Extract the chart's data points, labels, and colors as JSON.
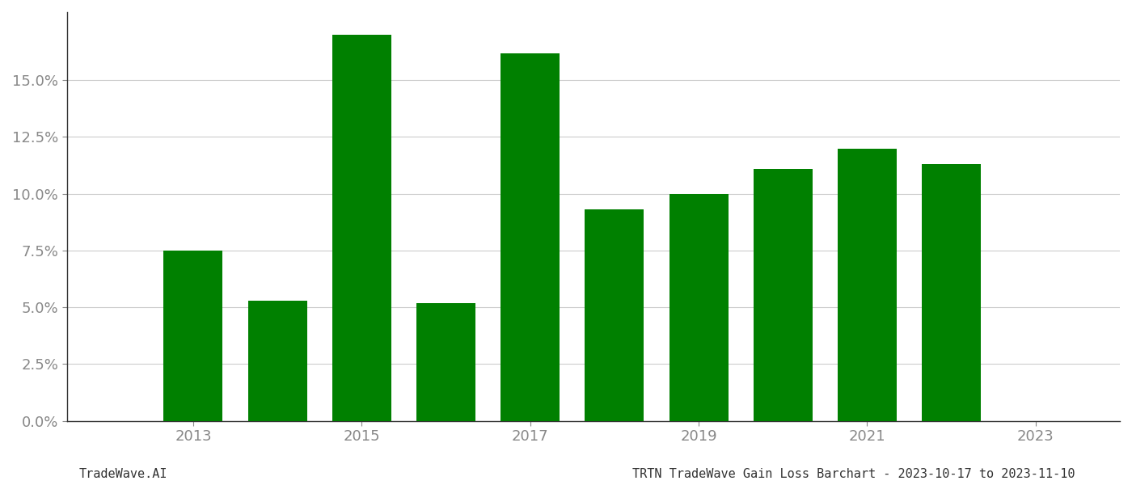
{
  "years": [
    2013,
    2014,
    2015,
    2016,
    2017,
    2018,
    2019,
    2020,
    2021,
    2022
  ],
  "values": [
    0.075,
    0.053,
    0.17,
    0.052,
    0.162,
    0.093,
    0.1,
    0.111,
    0.12,
    0.113
  ],
  "bar_color": "#008000",
  "background_color": "#ffffff",
  "ylim": [
    0,
    0.18
  ],
  "yticks": [
    0.0,
    0.025,
    0.05,
    0.075,
    0.1,
    0.125,
    0.15
  ],
  "x_ticks": [
    2013,
    2015,
    2017,
    2019,
    2021,
    2023
  ],
  "footer_left": "TradeWave.AI",
  "footer_right": "TRTN TradeWave Gain Loss Barchart - 2023-10-17 to 2023-11-10",
  "grid_color": "#cccccc",
  "tick_label_color": "#888888",
  "footer_font_size": 11,
  "bar_width": 0.7
}
